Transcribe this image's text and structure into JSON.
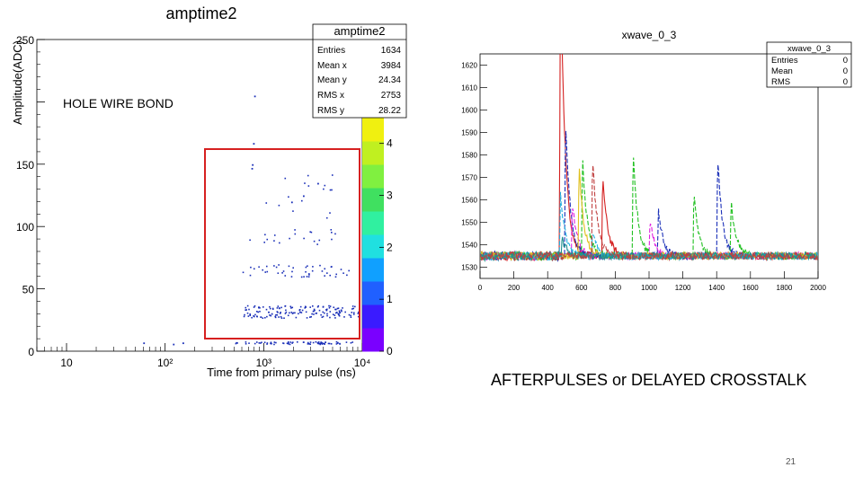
{
  "slide": {
    "annotation_left": "HOLE WIRE BOND",
    "annotation_right": "AFTERPULSES  or DELAYED CROSSTALK",
    "page_number": "21"
  },
  "left_plot": {
    "title": "amptime2",
    "ylabel": "Amplitude(ADC)",
    "xlabel": "Time from primary pulse (ns)",
    "ylabel_partial": "Amplitude(ADC)",
    "stats": {
      "title": "amptime2",
      "rows": [
        {
          "key": "Entries",
          "value": "1634"
        },
        {
          "key": "Mean x",
          "value": "3984"
        },
        {
          "key": "Mean y",
          "value": "24.34"
        },
        {
          "key": "RMS x",
          "value": "2753"
        },
        {
          "key": "RMS y",
          "value": "28.22"
        }
      ]
    },
    "highlight_box_color": "#d62020",
    "marker_color": "#1a2fb8"
  },
  "right_plot": {
    "title": "xwave_0_3",
    "stats": {
      "title": "xwave_0_3",
      "rows": [
        {
          "key": "Entries",
          "value": "0"
        },
        {
          "key": "Mean",
          "value": "0"
        },
        {
          "key": "RMS",
          "value": "0"
        }
      ]
    }
  },
  "chart_data": [
    {
      "type": "scatter",
      "title": "amptime2",
      "xlabel": "Time from primary pulse (ns)",
      "ylabel": "Amplitude(ADC)",
      "x_scale": "log",
      "xlim": [
        5,
        10000
      ],
      "ylim": [
        0,
        250
      ],
      "x_ticks": [
        {
          "value": 10,
          "label": "10"
        },
        {
          "value": 100,
          "label": "10²"
        },
        {
          "value": 1000,
          "label": "10³"
        },
        {
          "value": 10000,
          "label": "10⁴"
        }
      ],
      "y_ticks": [
        0,
        50,
        100,
        150,
        200,
        250
      ],
      "y_tick_labels": [
        "0",
        "50",
        "100",
        "150",
        "",
        "250"
      ],
      "colorbar": {
        "range": [
          0,
          6
        ],
        "ticks": [
          0,
          1,
          2,
          3,
          4,
          5
        ],
        "colors": [
          "#7a00ff",
          "#3a1bff",
          "#2060ff",
          "#10a0ff",
          "#20e0e0",
          "#30f0a0",
          "#40e060",
          "#80f040",
          "#c0f020",
          "#f0f010"
        ]
      },
      "clusters": [
        {
          "name": "baseline-band",
          "x_range": [
            500,
            10000
          ],
          "y_center": 7,
          "y_spread": 1,
          "count": 70
        },
        {
          "name": "band-30",
          "x_range": [
            600,
            10000
          ],
          "y_center": 32,
          "y_spread": 5,
          "count": 160
        },
        {
          "name": "band-65",
          "x_range": [
            600,
            8000
          ],
          "y_center": 65,
          "y_spread": 5,
          "count": 45
        },
        {
          "name": "band-90",
          "x_range": [
            700,
            6000
          ],
          "y_center": 92,
          "y_spread": 6,
          "count": 20
        },
        {
          "name": "band-130",
          "x_range": [
            700,
            5000
          ],
          "y_center": 125,
          "y_spread": 18,
          "count": 16
        }
      ],
      "points": [
        {
          "x": 750,
          "y": 147
        },
        {
          "x": 760,
          "y": 150
        },
        {
          "x": 780,
          "y": 167
        },
        {
          "x": 800,
          "y": 205
        },
        {
          "x": 150,
          "y": 7
        },
        {
          "x": 60,
          "y": 7
        },
        {
          "x": 120,
          "y": 6
        },
        {
          "x": 2500,
          "y": 125
        },
        {
          "x": 1900,
          "y": 120
        },
        {
          "x": 3500,
          "y": 135
        }
      ]
    },
    {
      "type": "line",
      "title": "xwave_0_3",
      "xlim": [
        0,
        2000
      ],
      "ylim": [
        1525,
        1625
      ],
      "x_ticks": [
        0,
        200,
        400,
        600,
        800,
        1000,
        1200,
        1400,
        1600,
        1800,
        2000
      ],
      "y_ticks": [
        1530,
        1540,
        1550,
        1560,
        1570,
        1580,
        1590,
        1600,
        1610,
        1620
      ],
      "baseline": 1535,
      "trigger_x": 465,
      "series": [
        {
          "color": "#d42020",
          "dashed": false,
          "peaks": [
            {
              "x": 470,
              "y": 1700
            },
            {
              "x": 720,
              "y": 1580
            }
          ]
        },
        {
          "color": "#1a2fb8",
          "dashed": true,
          "peaks": [
            {
              "x": 500,
              "y": 1610
            },
            {
              "x": 1050,
              "y": 1560
            },
            {
              "x": 1400,
              "y": 1590
            }
          ]
        },
        {
          "color": "#e020e0",
          "dashed": true,
          "peaks": [
            {
              "x": 540,
              "y": 1565
            },
            {
              "x": 1000,
              "y": 1555
            }
          ]
        },
        {
          "color": "#20c020",
          "dashed": true,
          "peaks": [
            {
              "x": 600,
              "y": 1590
            },
            {
              "x": 900,
              "y": 1592
            },
            {
              "x": 1260,
              "y": 1570
            },
            {
              "x": 1480,
              "y": 1565
            }
          ]
        },
        {
          "color": "#e0c020",
          "dashed": false,
          "peaks": [
            {
              "x": 580,
              "y": 1585
            }
          ]
        },
        {
          "color": "#20b0e0",
          "dashed": true,
          "peaks": [
            {
              "x": 470,
              "y": 1570
            },
            {
              "x": 660,
              "y": 1548
            }
          ]
        },
        {
          "color": "#209090",
          "dashed": false,
          "peaks": [
            {
              "x": 480,
              "y": 1545
            }
          ]
        },
        {
          "color": "#c04040",
          "dashed": true,
          "peaks": [
            {
              "x": 660,
              "y": 1590
            }
          ]
        }
      ]
    }
  ]
}
